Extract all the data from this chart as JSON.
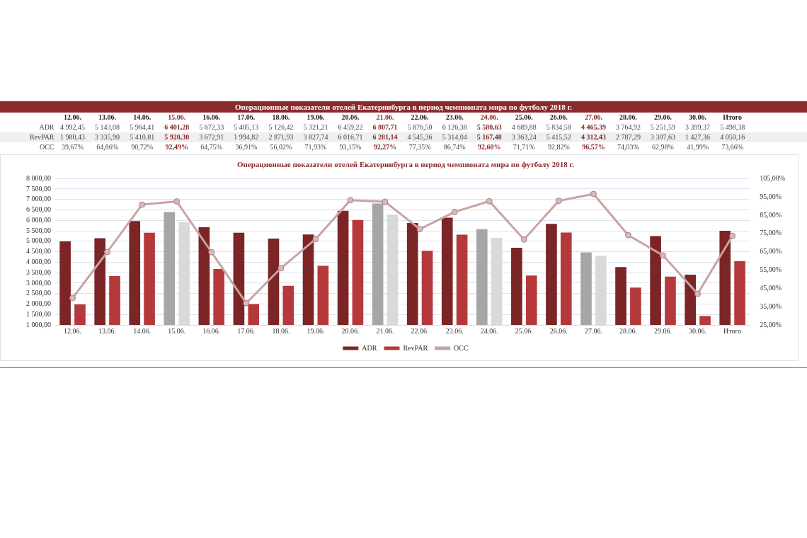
{
  "chart_data": {
    "type": "bar",
    "title": "Операционные показатели отелей Екатеринбурга в период чемпионата мира по футболу 2018 г.",
    "annotations": [
      "Операционные показатели отелей Екатеринбурга в период чемпионата мира по футболу 2018 г."
    ],
    "categories": [
      "12.06.",
      "13.06.",
      "14.06.",
      "15.06.",
      "16.06.",
      "17.06.",
      "18.06.",
      "19.06.",
      "20.06.",
      "21.06.",
      "22.06.",
      "23.06.",
      "24.06.",
      "25.06.",
      "26.06.",
      "27.06.",
      "28.06.",
      "29.06.",
      "30.06.",
      "Итого"
    ],
    "series": [
      {
        "name": "ADR",
        "color": "#7b2527",
        "colors": [
          "#7b2527",
          "#7b2527",
          "#7b2527",
          "#a6a6a6",
          "#7b2527",
          "#7b2527",
          "#7b2527",
          "#7b2527",
          "#7b2527",
          "#a6a6a6",
          "#7b2527",
          "#7b2527",
          "#a6a6a6",
          "#7b2527",
          "#7b2527",
          "#a6a6a6",
          "#7b2527",
          "#7b2527",
          "#7b2527",
          "#7b2527"
        ],
        "values": [
          4992.45,
          5143.08,
          5964.41,
          6401.28,
          5672.33,
          5405.13,
          5126.42,
          5321.21,
          6459.22,
          6807.71,
          5876.5,
          6126.38,
          5580.63,
          4689.88,
          5834.58,
          4465.39,
          3764.92,
          5251.59,
          3399.37,
          5498.38
        ],
        "value_labels": [
          "4 992,45",
          "5 143,08",
          "5 964,41",
          "6 401,28",
          "5 672,33",
          "5 405,13",
          "5 126,42",
          "5 321,21",
          "6 459,22",
          "6 807,71",
          "5 876,50",
          "6 126,38",
          "5 580,63",
          "4 689,88",
          "5 834,58",
          "4 465,39",
          "3 764,92",
          "5 251,59",
          "3 399,37",
          "5 498,38"
        ]
      },
      {
        "name": "RevPAR",
        "color": "#b5393b",
        "colors": [
          "#b5393b",
          "#b5393b",
          "#b5393b",
          "#d9d9d9",
          "#b5393b",
          "#b5393b",
          "#b5393b",
          "#b5393b",
          "#b5393b",
          "#d9d9d9",
          "#b5393b",
          "#b5393b",
          "#d9d9d9",
          "#b5393b",
          "#b5393b",
          "#d9d9d9",
          "#b5393b",
          "#b5393b",
          "#b5393b",
          "#b5393b"
        ],
        "values": [
          1980.43,
          3335.9,
          5410.81,
          5920.3,
          3672.91,
          1994.82,
          2871.93,
          3827.74,
          6016.71,
          6281.14,
          4545.36,
          5314.04,
          5167.48,
          3363.24,
          5415.52,
          4312.43,
          2787.29,
          3307.63,
          1427.36,
          4050.16
        ],
        "value_labels": [
          "1 980,43",
          "3 335,90",
          "5 410,81",
          "5 920,30",
          "3 672,91",
          "1 994,82",
          "2 871,93",
          "3 827,74",
          "6 016,71",
          "6 281,14",
          "4 545,36",
          "5 314,04",
          "5 167,48",
          "3 363,24",
          "5 415,52",
          "4 312,43",
          "2 787,29",
          "3 307,63",
          "1 427,36",
          "4 050,16"
        ]
      },
      {
        "name": "OCC",
        "type": "line",
        "axis": "y2",
        "color": "#c9a3a4",
        "values": [
          39.67,
          64.86,
          90.72,
          92.49,
          64.75,
          36.91,
          56.02,
          71.93,
          93.15,
          92.27,
          77.35,
          86.74,
          92.6,
          71.71,
          92.82,
          96.57,
          74.03,
          62.98,
          41.99,
          73.66
        ],
        "value_labels": [
          "39,67%",
          "64,86%",
          "90,72%",
          "92,49%",
          "64,75%",
          "36,91%",
          "56,02%",
          "71,93%",
          "93,15%",
          "92,27%",
          "77,35%",
          "86,74%",
          "92,60%",
          "71,71%",
          "92,82%",
          "96,57%",
          "74,03%",
          "62,98%",
          "41,99%",
          "73,66%"
        ]
      }
    ],
    "marker": "circle",
    "grid": "y",
    "legend": "bottom",
    "ylim": [
      1000,
      8000
    ],
    "yticks": [
      {
        "value": 1000,
        "label": "1 000,00"
      },
      {
        "value": 1500,
        "label": "1 500,00"
      },
      {
        "value": 2000,
        "label": "2 000,00"
      },
      {
        "value": 2500,
        "label": "2 500,00"
      },
      {
        "value": 3000,
        "label": "3 000,00"
      },
      {
        "value": 3500,
        "label": "3 500,00"
      },
      {
        "value": 4000,
        "label": "4 000,00"
      },
      {
        "value": 4500,
        "label": "4 500,00"
      },
      {
        "value": 5000,
        "label": "5 000,00"
      },
      {
        "value": 5500,
        "label": "5 500,00"
      },
      {
        "value": 6000,
        "label": "6 000,00"
      },
      {
        "value": 6500,
        "label": "6 500,00"
      },
      {
        "value": 7000,
        "label": "7 000,00"
      },
      {
        "value": 7500,
        "label": "7 500,00"
      },
      {
        "value": 8000,
        "label": "8 000,00"
      }
    ],
    "y2lim": [
      25,
      105
    ],
    "y2ticks": [
      {
        "value": 25,
        "label": "25,00%"
      },
      {
        "value": 35,
        "label": "35,00%"
      },
      {
        "value": 45,
        "label": "45,00%"
      },
      {
        "value": 55,
        "label": "55,00%"
      },
      {
        "value": 65,
        "label": "65,00%"
      },
      {
        "value": 75,
        "label": "75,00%"
      },
      {
        "value": 85,
        "label": "85,00%"
      },
      {
        "value": 95,
        "label": "95,00%"
      },
      {
        "value": 105,
        "label": "105,00%"
      }
    ]
  }
}
